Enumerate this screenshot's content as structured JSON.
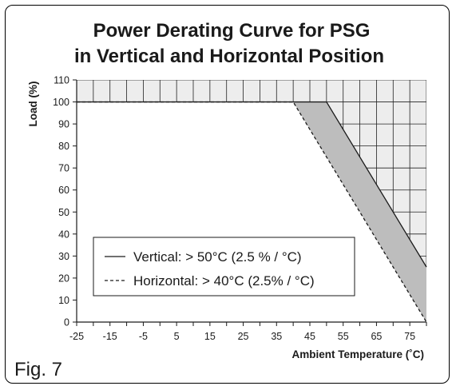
{
  "figure_label": "Fig. 7",
  "chart_data": {
    "type": "line",
    "title_lines": [
      "Power Derating Curve for PSG",
      "in Vertical and Horizontal Position"
    ],
    "xlabel": "Ambient Temperature (˚C)",
    "ylabel": "Load (%)",
    "xlim": [
      -25,
      80
    ],
    "ylim": [
      0,
      110
    ],
    "x_ticks": [
      -25,
      -20,
      -15,
      -10,
      -5,
      0,
      5,
      10,
      15,
      20,
      25,
      30,
      35,
      40,
      45,
      50,
      55,
      60,
      65,
      70,
      75,
      80
    ],
    "x_tick_labels": [
      "-25",
      "-15",
      "-5",
      "5",
      "15",
      "25",
      "35",
      "45",
      "55",
      "65",
      "75"
    ],
    "y_ticks": [
      0,
      10,
      20,
      30,
      40,
      50,
      60,
      70,
      80,
      90,
      100,
      110
    ],
    "y_tick_labels": [
      "0",
      "10",
      "20",
      "30",
      "40",
      "50",
      "60",
      "70",
      "80",
      "90",
      "100",
      "110"
    ],
    "grid_region": "outside derating curve",
    "series": [
      {
        "name": "Vertical: > 50°C (2.5 % / °C)",
        "style": "solid",
        "x": [
          -25,
          50,
          80
        ],
        "y": [
          100,
          100,
          25
        ]
      },
      {
        "name": "Horizontal: > 40°C (2.5% / °C)",
        "style": "dashed",
        "x": [
          -25,
          40,
          80
        ],
        "y": [
          100,
          100,
          0
        ]
      }
    ],
    "legend_position": "lower-left",
    "colors": {
      "band_fill": "#bdbdbd",
      "grid_fill": "#ededed",
      "line": "#1a1a1a"
    }
  }
}
